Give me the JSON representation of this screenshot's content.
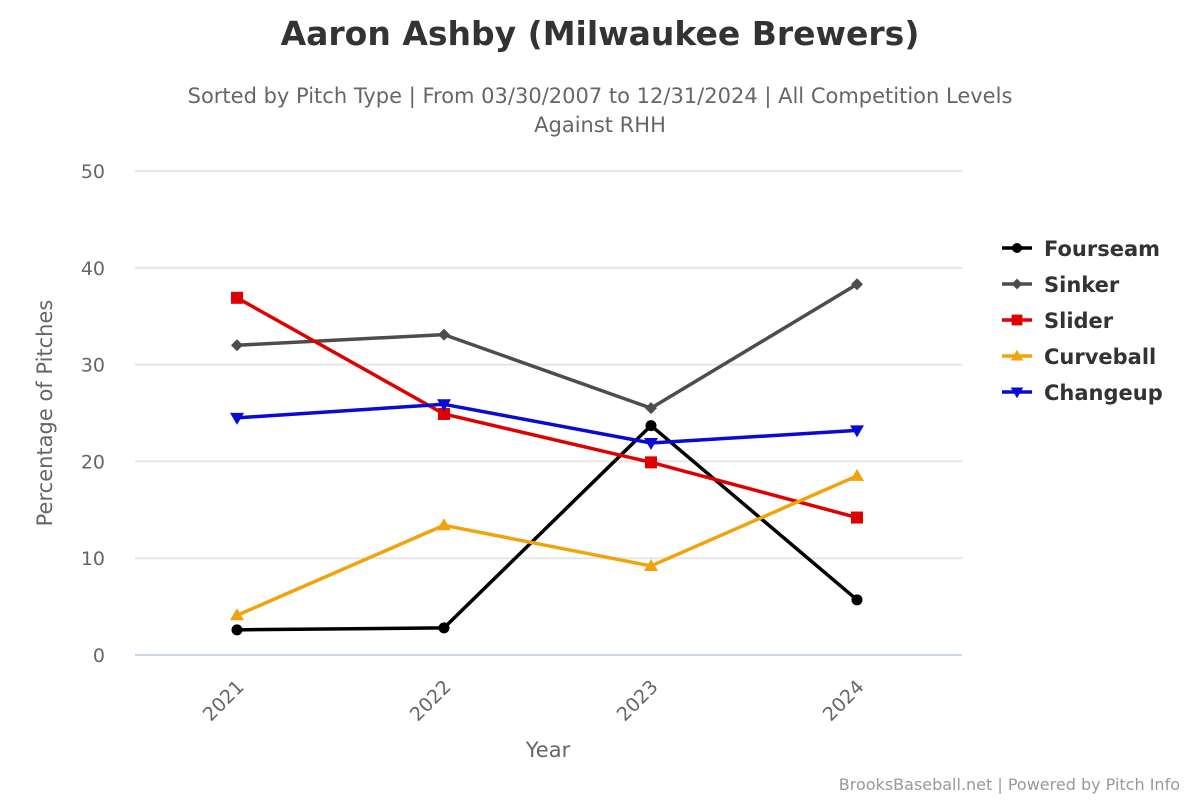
{
  "chart_data": {
    "type": "line",
    "title": "Aaron Ashby (Milwaukee Brewers)",
    "subtitle_line1": "Sorted by Pitch Type | From 03/30/2007 to 12/31/2024 | All Competition Levels",
    "subtitle_line2": "Against RHH",
    "xlabel": "Year",
    "ylabel": "Percentage of Pitches",
    "categories": [
      "2021",
      "2022",
      "2023",
      "2024"
    ],
    "ylim": [
      0,
      50
    ],
    "yticks": [
      0,
      10,
      20,
      30,
      40,
      50
    ],
    "grid": true,
    "legend_position": "right",
    "series": [
      {
        "name": "Fourseam",
        "color": "#000000",
        "marker": "circle",
        "values": [
          2.6,
          2.8,
          23.7,
          5.7
        ]
      },
      {
        "name": "Sinker",
        "color": "#4d4d4d",
        "marker": "diamond",
        "values": [
          32.0,
          33.1,
          25.5,
          38.3
        ]
      },
      {
        "name": "Slider",
        "color": "#e00000",
        "marker": "square",
        "values": [
          36.9,
          24.9,
          19.9,
          14.2
        ]
      },
      {
        "name": "Curveball",
        "color": "#f0a30a",
        "marker": "triangle",
        "values": [
          4.1,
          13.4,
          9.2,
          18.5
        ]
      },
      {
        "name": "Changeup",
        "color": "#0a0ad6",
        "marker": "triangle-down",
        "values": [
          24.5,
          25.9,
          21.9,
          23.2
        ]
      }
    ]
  },
  "credit": "BrooksBaseball.net | Powered by Pitch Info"
}
